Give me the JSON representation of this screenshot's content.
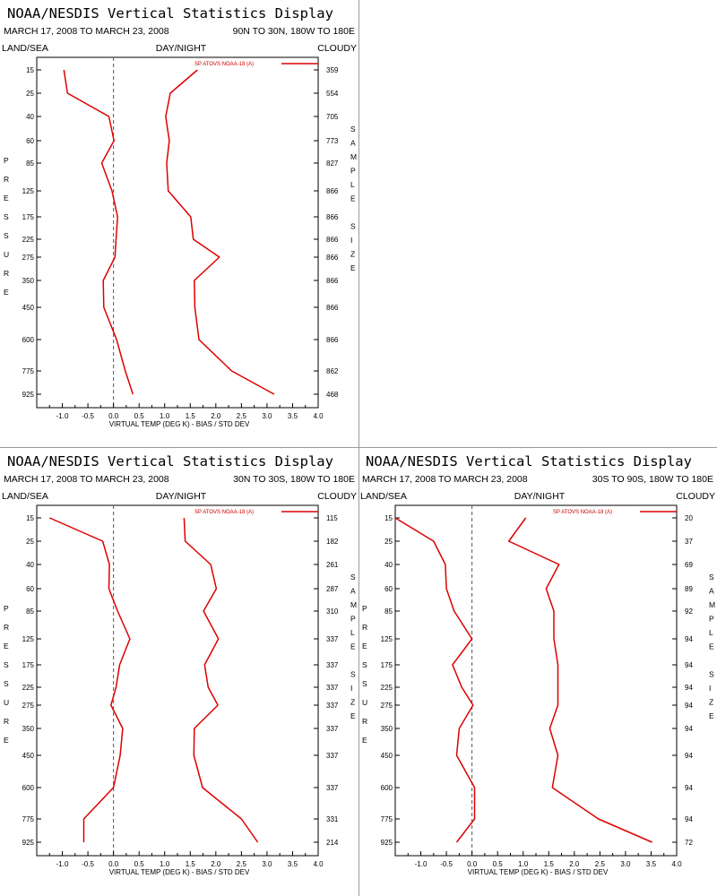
{
  "header_title": "NOAA/NESDIS Vertical Statistics Display",
  "date_range": "MARCH 17, 2008 TO MARCH 23, 2008",
  "land_sea_label": "LAND/SEA",
  "day_night_label": "DAY/NIGHT",
  "cloudy_label": "CLOUDY",
  "left_axis_letters": [
    "P",
    "R",
    "E",
    "S",
    "S",
    "U",
    "R",
    "E"
  ],
  "right_axis_letters": [
    "S",
    "A",
    "M",
    "P",
    "L",
    "E",
    "",
    "S",
    "I",
    "Z",
    "E"
  ],
  "colors": {
    "series": "#dd0000",
    "axis": "#000000"
  },
  "chart_data": [
    {
      "type": "line",
      "region": "90N TO 30N, 180W TO 180E",
      "xlabel": "VIRTUAL TEMP (DEG K) - BIAS / STD DEV",
      "ylabel": "PRESSURE",
      "xlim": [
        -1.5,
        4.0
      ],
      "x_ticks": [
        "-1.0",
        "-0.5",
        "0.0",
        "0.5",
        "1.0",
        "1.5",
        "2.0",
        "2.5",
        "3.0",
        "3.5",
        "4.0"
      ],
      "pressure_levels": [
        "15",
        "25",
        "40",
        "60",
        "85",
        "125",
        "175",
        "225",
        "275",
        "350",
        "450",
        "600",
        "775",
        "925"
      ],
      "sample_size": [
        "359",
        "554",
        "705",
        "773",
        "827",
        "866",
        "866",
        "866",
        "866",
        "866",
        "866",
        "866",
        "862",
        "468"
      ],
      "series": [
        {
          "name": "SP ATOVS NOAA-18 (A)",
          "kind": "bias",
          "values": [
            -0.97,
            -0.9,
            -0.09,
            0.01,
            -0.23,
            -0.03,
            0.08,
            0.05,
            0.03,
            -0.2,
            -0.19,
            0.06,
            0.23,
            0.38
          ]
        },
        {
          "name": "SP ATOVS NOAA-18 (A)",
          "kind": "std_dev",
          "values": [
            1.64,
            1.11,
            1.02,
            1.09,
            1.04,
            1.07,
            1.51,
            1.56,
            2.07,
            1.58,
            1.59,
            1.67,
            2.31,
            3.14
          ]
        }
      ]
    },
    {
      "type": "line",
      "region": "30N TO 30S, 180W TO 180E",
      "xlabel": "VIRTUAL TEMP (DEG K) - BIAS / STD DEV",
      "ylabel": "PRESSURE",
      "xlim": [
        -1.5,
        4.0
      ],
      "x_ticks": [
        "-1.0",
        "-0.5",
        "0.0",
        "0.5",
        "1.0",
        "1.5",
        "2.0",
        "2.5",
        "3.0",
        "3.5",
        "4.0"
      ],
      "pressure_levels": [
        "15",
        "25",
        "40",
        "60",
        "85",
        "125",
        "175",
        "225",
        "275",
        "350",
        "450",
        "600",
        "775",
        "925"
      ],
      "sample_size": [
        "115",
        "182",
        "261",
        "287",
        "310",
        "337",
        "337",
        "337",
        "337",
        "337",
        "337",
        "337",
        "331",
        "214"
      ],
      "series": [
        {
          "name": "SP ATOVS NOAA-18 (A)",
          "kind": "bias",
          "values": [
            -1.25,
            -0.21,
            -0.08,
            -0.09,
            0.08,
            0.32,
            0.12,
            0.05,
            -0.05,
            0.18,
            0.13,
            0.0,
            -0.58,
            -0.58
          ]
        },
        {
          "name": "SP ATOVS NOAA-18 (A)",
          "kind": "std_dev",
          "values": [
            1.38,
            1.4,
            1.9,
            2.01,
            1.76,
            2.05,
            1.78,
            1.85,
            2.04,
            1.58,
            1.57,
            1.74,
            2.5,
            2.82
          ]
        }
      ]
    },
    {
      "type": "line",
      "region": "30S TO 90S, 180W TO 180E",
      "xlabel": "VIRTUAL TEMP (DEG K) - BIAS / STD DEV",
      "ylabel": "PRESSURE",
      "xlim": [
        -1.5,
        4.0
      ],
      "x_ticks": [
        "-1.0",
        "-0.5",
        "0.0",
        "0.5",
        "1.0",
        "1.5",
        "2.0",
        "2.5",
        "3.0",
        "3.5",
        "4.0"
      ],
      "pressure_levels": [
        "15",
        "25",
        "40",
        "60",
        "85",
        "125",
        "175",
        "225",
        "275",
        "350",
        "450",
        "600",
        "775",
        "925"
      ],
      "sample_size": [
        "20",
        "37",
        "69",
        "89",
        "92",
        "94",
        "94",
        "94",
        "94",
        "94",
        "94",
        "94",
        "94",
        "72"
      ],
      "series": [
        {
          "name": "SP ATOVS NOAA-18 (A)",
          "kind": "bias",
          "values": [
            -1.5,
            -0.75,
            -0.52,
            -0.5,
            -0.35,
            0.0,
            -0.38,
            -0.2,
            0.02,
            -0.25,
            -0.3,
            0.05,
            0.05,
            -0.3
          ]
        },
        {
          "name": "SP ATOVS NOAA-18 (A)",
          "kind": "std_dev",
          "values": [
            1.05,
            0.72,
            1.7,
            1.45,
            1.6,
            1.6,
            1.68,
            1.68,
            1.68,
            1.52,
            1.68,
            1.57,
            2.47,
            3.52
          ]
        }
      ]
    }
  ]
}
